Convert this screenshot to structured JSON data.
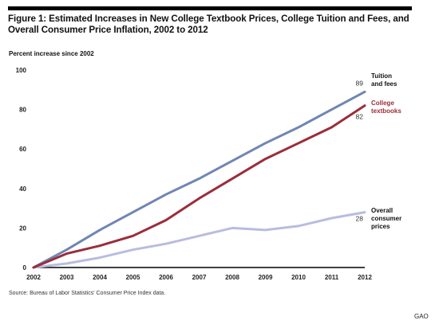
{
  "figure": {
    "title": "Figure 1: Estimated Increases in New College Textbook Prices, College Tuition and Fees, and Overall Consumer Price Inflation, 2002 to 2012",
    "source": "Source: Bureau of Labor Statistics' Consumer Price Index data.",
    "credit": "GAO"
  },
  "chart_data": {
    "type": "line",
    "ylabel": "Percent increase since 2002",
    "xlabel": "",
    "x": [
      "2002",
      "2003",
      "2004",
      "2005",
      "2006",
      "2007",
      "2008",
      "2009",
      "2010",
      "2011",
      "2012"
    ],
    "ylim": [
      0,
      100
    ],
    "yticks": [
      "0",
      "20",
      "40",
      "60",
      "80",
      "100"
    ],
    "grid": false,
    "legend": "inline-right",
    "series": [
      {
        "name": "Tuition and fees",
        "label_lines": [
          "Tuition",
          "and fees"
        ],
        "color": "#6f86b4",
        "end_label": "89",
        "values": [
          0,
          9,
          19,
          28,
          37,
          45,
          54,
          63,
          71,
          80,
          89
        ]
      },
      {
        "name": "College textbooks",
        "label_lines": [
          "College",
          "textbooks"
        ],
        "color": "#9b2d3a",
        "end_label": "82",
        "values": [
          0,
          7,
          11,
          16,
          24,
          35,
          45,
          55,
          63,
          71,
          82
        ]
      },
      {
        "name": "Overall consumer prices",
        "label_lines": [
          "Overall",
          "consumer",
          "prices"
        ],
        "color": "#b9bcdf",
        "end_label": "28",
        "values": [
          0,
          2,
          5,
          9,
          12,
          16,
          20,
          19,
          21,
          25,
          28
        ]
      }
    ]
  }
}
